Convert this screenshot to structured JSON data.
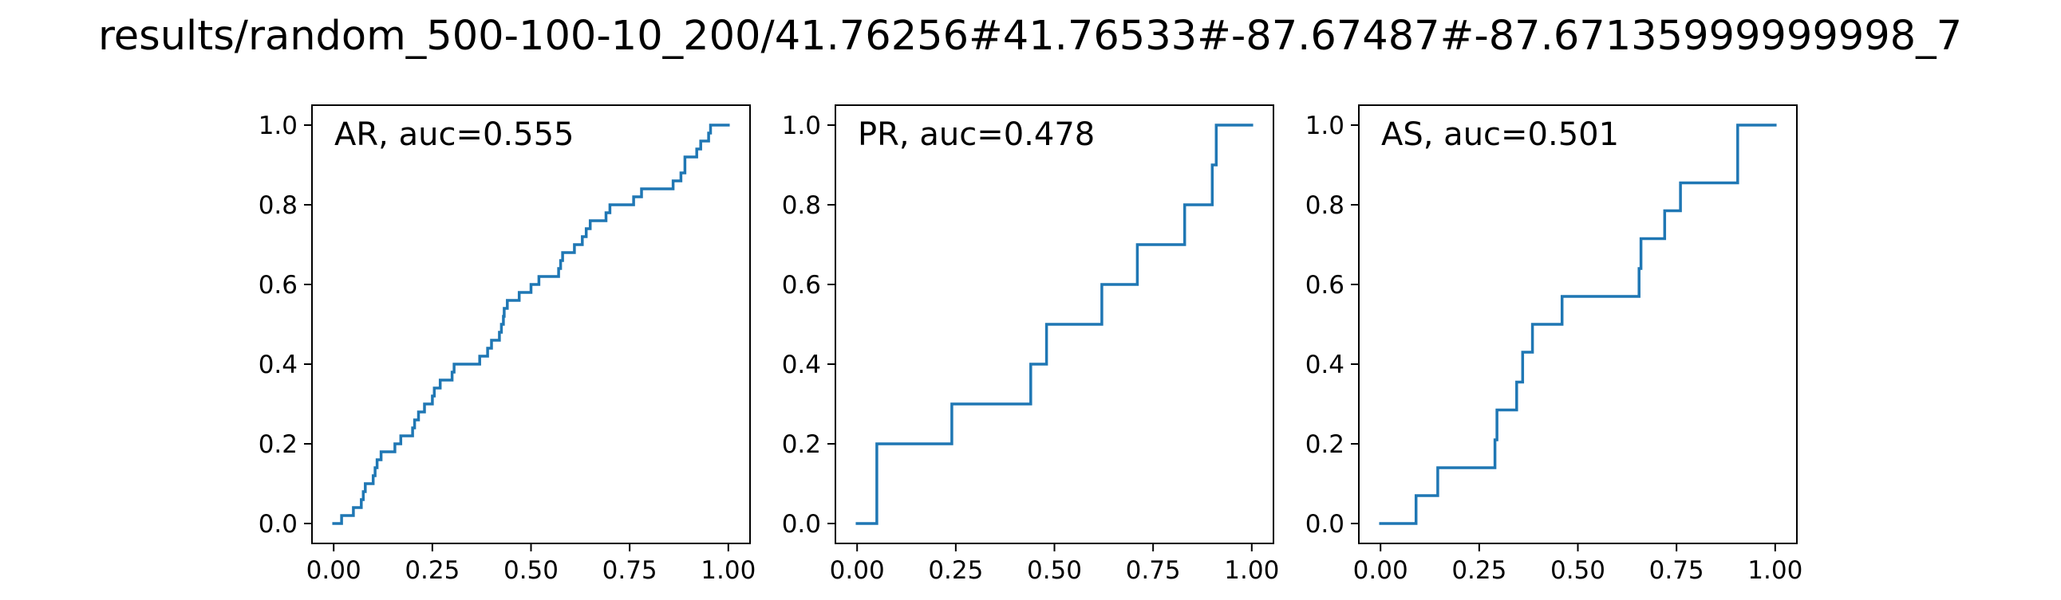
{
  "figure": {
    "suptitle": "results/random_500-100-10_200/41.76256#41.76533#-87.67487#-87.67135999999998_7"
  },
  "chart_data": [
    {
      "type": "line",
      "label": "AR, auc=0.555",
      "xlim": [
        -0.055,
        1.055
      ],
      "ylim": [
        -0.05,
        1.05
      ],
      "xticks": [
        "0.00",
        "0.25",
        "0.50",
        "0.75",
        "1.00"
      ],
      "yticks": [
        "0.0",
        "0.2",
        "0.4",
        "0.6",
        "0.8",
        "1.0"
      ],
      "grid": false,
      "series": [
        {
          "color": "#1f77b4",
          "steps": [
            [
              0,
              0
            ],
            [
              0.02,
              0.02
            ],
            [
              0.05,
              0.04
            ],
            [
              0.07,
              0.06
            ],
            [
              0.075,
              0.08
            ],
            [
              0.08,
              0.1
            ],
            [
              0.1,
              0.12
            ],
            [
              0.105,
              0.14
            ],
            [
              0.11,
              0.16
            ],
            [
              0.12,
              0.18
            ],
            [
              0.155,
              0.2
            ],
            [
              0.17,
              0.22
            ],
            [
              0.2,
              0.24
            ],
            [
              0.205,
              0.26
            ],
            [
              0.215,
              0.28
            ],
            [
              0.23,
              0.3
            ],
            [
              0.25,
              0.32
            ],
            [
              0.255,
              0.34
            ],
            [
              0.27,
              0.36
            ],
            [
              0.3,
              0.38
            ],
            [
              0.305,
              0.4
            ],
            [
              0.37,
              0.42
            ],
            [
              0.39,
              0.44
            ],
            [
              0.4,
              0.46
            ],
            [
              0.42,
              0.48
            ],
            [
              0.425,
              0.5
            ],
            [
              0.43,
              0.52
            ],
            [
              0.432,
              0.54
            ],
            [
              0.44,
              0.56
            ],
            [
              0.47,
              0.58
            ],
            [
              0.5,
              0.6
            ],
            [
              0.51,
              0.6
            ],
            [
              0.52,
              0.62
            ],
            [
              0.57,
              0.64
            ],
            [
              0.575,
              0.66
            ],
            [
              0.58,
              0.68
            ],
            [
              0.61,
              0.7
            ],
            [
              0.63,
              0.72
            ],
            [
              0.64,
              0.74
            ],
            [
              0.65,
              0.76
            ],
            [
              0.69,
              0.78
            ],
            [
              0.7,
              0.8
            ],
            [
              0.75,
              0.8
            ],
            [
              0.76,
              0.82
            ],
            [
              0.78,
              0.84
            ],
            [
              0.86,
              0.86
            ],
            [
              0.88,
              0.88
            ],
            [
              0.89,
              0.92
            ],
            [
              0.92,
              0.94
            ],
            [
              0.93,
              0.96
            ],
            [
              0.95,
              0.98
            ],
            [
              0.955,
              1.0
            ],
            [
              1.0,
              1.0
            ]
          ]
        }
      ]
    },
    {
      "type": "line",
      "label": "PR, auc=0.478",
      "xlim": [
        -0.055,
        1.055
      ],
      "ylim": [
        -0.05,
        1.05
      ],
      "xticks": [
        "0.00",
        "0.25",
        "0.50",
        "0.75",
        "1.00"
      ],
      "yticks": [
        "0.0",
        "0.2",
        "0.4",
        "0.6",
        "0.8",
        "1.0"
      ],
      "grid": false,
      "series": [
        {
          "color": "#1f77b4",
          "steps": [
            [
              0,
              0
            ],
            [
              0.05,
              0.2
            ],
            [
              0.24,
              0.3
            ],
            [
              0.44,
              0.4
            ],
            [
              0.48,
              0.5
            ],
            [
              0.62,
              0.6
            ],
            [
              0.71,
              0.7
            ],
            [
              0.83,
              0.8
            ],
            [
              0.9,
              0.9
            ],
            [
              0.91,
              1.0
            ],
            [
              1.0,
              1.0
            ]
          ]
        }
      ]
    },
    {
      "type": "line",
      "label": "AS, auc=0.501",
      "xlim": [
        -0.055,
        1.055
      ],
      "ylim": [
        -0.05,
        1.05
      ],
      "xticks": [
        "0.00",
        "0.25",
        "0.50",
        "0.75",
        "1.00"
      ],
      "yticks": [
        "0.0",
        "0.2",
        "0.4",
        "0.6",
        "0.8",
        "1.0"
      ],
      "grid": false,
      "series": [
        {
          "color": "#1f77b4",
          "steps": [
            [
              0,
              0
            ],
            [
              0.09,
              0.07
            ],
            [
              0.145,
              0.14
            ],
            [
              0.29,
              0.21
            ],
            [
              0.295,
              0.285
            ],
            [
              0.345,
              0.355
            ],
            [
              0.36,
              0.43
            ],
            [
              0.385,
              0.5
            ],
            [
              0.46,
              0.57
            ],
            [
              0.655,
              0.64
            ],
            [
              0.66,
              0.715
            ],
            [
              0.72,
              0.785
            ],
            [
              0.76,
              0.855
            ],
            [
              0.905,
              1.0
            ],
            [
              1.0,
              1.0
            ]
          ]
        }
      ]
    }
  ]
}
